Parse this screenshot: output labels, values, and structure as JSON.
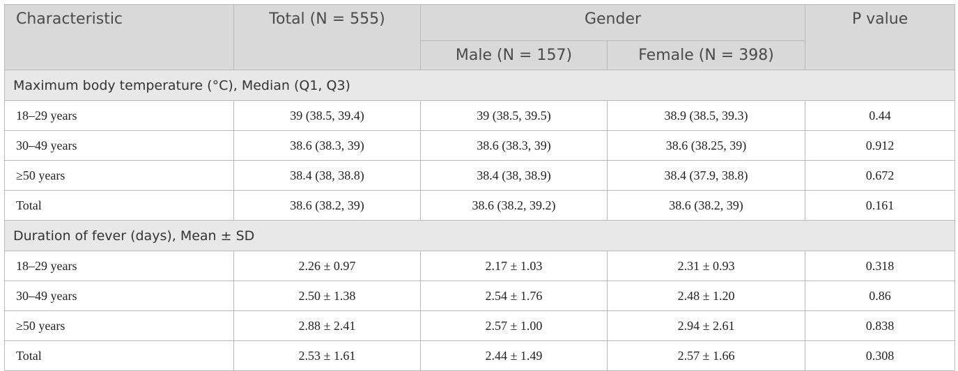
{
  "table": {
    "header": {
      "characteristic": "Characteristic",
      "total": "Total (N = 555)",
      "group": "Gender",
      "subgroups": [
        "Male (N = 157)",
        "Female (N = 398)"
      ],
      "p_value": "P value"
    },
    "sections": [
      {
        "title": "Maximum body temperature (°C), Median (Q1, Q3)",
        "rows": [
          [
            "18–29 years",
            "39 (38.5, 39.4)",
            "39 (38.5, 39.5)",
            "38.9 (38.5, 39.3)",
            "0.44"
          ],
          [
            "30–49 years",
            "38.6 (38.3, 39)",
            "38.6 (38.3, 39)",
            "38.6 (38.25, 39)",
            "0.912"
          ],
          [
            "≥50 years",
            "38.4 (38, 38.8)",
            "38.4 (38, 38.9)",
            "38.4 (37.9, 38.8)",
            "0.672"
          ],
          [
            "Total",
            "38.6 (38.2, 39)",
            "38.6 (38.2, 39.2)",
            "38.6 (38.2, 39)",
            "0.161"
          ]
        ]
      },
      {
        "title": "Duration of fever (days), Mean ± SD",
        "rows": [
          [
            "18–29 years",
            "2.26 ± 0.97",
            "2.17 ± 1.03",
            "2.31 ± 0.93",
            "0.318"
          ],
          [
            "30–49 years",
            "2.50 ± 1.38",
            "2.54 ± 1.76",
            "2.48 ± 1.20",
            "0.86"
          ],
          [
            "≥50 years",
            "2.88 ± 2.41",
            "2.57 ± 1.00",
            "2.94 ± 2.61",
            "0.838"
          ],
          [
            "Total",
            "2.53 ± 1.61",
            "2.44 ± 1.49",
            "2.57 ± 1.66",
            "0.308"
          ]
        ]
      }
    ]
  }
}
